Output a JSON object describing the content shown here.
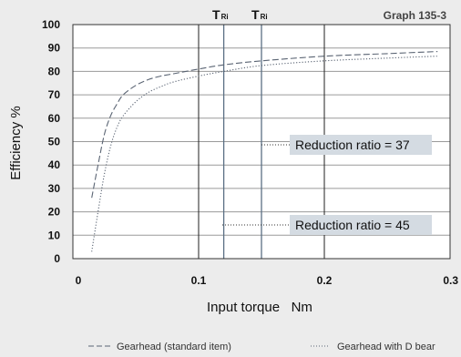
{
  "graph_label": "Graph 135-3",
  "tri_labels": [
    {
      "main": "T",
      "sub": "Ri"
    },
    {
      "main": "T",
      "sub": "Ri"
    }
  ],
  "annotations": [
    {
      "text": "Reduction ratio = 37"
    },
    {
      "text": "Reduction ratio = 45"
    }
  ],
  "legend": [
    {
      "text": "Gearhead (standard item)",
      "style": "dashed"
    },
    {
      "text": "Gearhead with D bear",
      "style": "dotted"
    }
  ],
  "colors": {
    "background": "#ececec",
    "plot_background": "#ffffff",
    "grid": "#9a9a9a",
    "tri_line": "#5a6f84",
    "annotation_box": "#d4dbe2",
    "series": "#5a6473"
  },
  "chart_data": {
    "type": "line",
    "title": "",
    "xlabel": "Input torque   Nm",
    "ylabel": "Efficiency %",
    "xlim": [
      0,
      0.3
    ],
    "ylim": [
      0,
      100
    ],
    "xticks": [
      0,
      0.1,
      0.2,
      0.3
    ],
    "xtick_labels": [
      "0",
      "0.1",
      "0.2",
      "0.3"
    ],
    "yticks": [
      0,
      10,
      20,
      30,
      40,
      50,
      60,
      70,
      80,
      90,
      100
    ],
    "ytick_labels": [
      "0",
      "10",
      "20",
      "30",
      "40",
      "50",
      "60",
      "70",
      "80",
      "90",
      "100"
    ],
    "grid": true,
    "tri_x": [
      0.12,
      0.15
    ],
    "series": [
      {
        "name": "Gearhead (standard item)",
        "style": "dashed",
        "x": [
          0.015,
          0.02,
          0.025,
          0.03,
          0.035,
          0.04,
          0.05,
          0.06,
          0.07,
          0.08,
          0.1,
          0.12,
          0.15,
          0.2,
          0.25,
          0.29
        ],
        "y": [
          26,
          40,
          53,
          61,
          66,
          70,
          74,
          76.5,
          78,
          79,
          81,
          82.8,
          84.5,
          86.5,
          87.6,
          88.5
        ]
      },
      {
        "name": "Gearhead with D bear",
        "style": "dotted",
        "x": [
          0.015,
          0.02,
          0.025,
          0.03,
          0.035,
          0.04,
          0.05,
          0.06,
          0.07,
          0.08,
          0.1,
          0.12,
          0.15,
          0.2,
          0.25,
          0.29
        ],
        "y": [
          3,
          20,
          36,
          48,
          56,
          61,
          67,
          71,
          73.5,
          75.5,
          78,
          80,
          82.5,
          84.5,
          85.7,
          86.5
        ]
      }
    ]
  }
}
